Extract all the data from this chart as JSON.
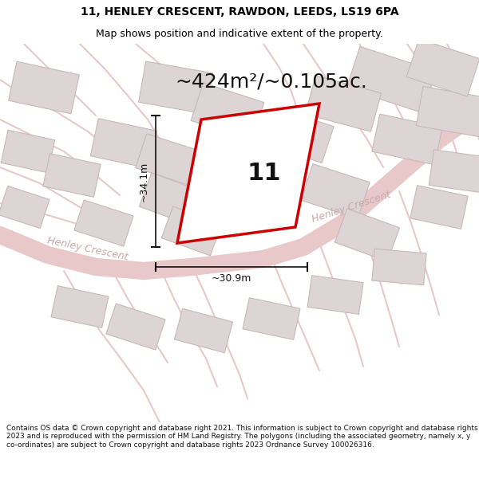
{
  "title": "11, HENLEY CRESCENT, RAWDON, LEEDS, LS19 6PA",
  "subtitle": "Map shows position and indicative extent of the property.",
  "area_text": "~424m²/~0.105ac.",
  "dim_vertical": "~34.1m",
  "dim_horizontal": "~30.9m",
  "property_number": "11",
  "footer": "Contains OS data © Crown copyright and database right 2021. This information is subject to Crown copyright and database rights 2023 and is reproduced with the permission of HM Land Registry. The polygons (including the associated geometry, namely x, y co-ordinates) are subject to Crown copyright and database rights 2023 Ordnance Survey 100026316.",
  "bg_color": "#ffffff",
  "map_bg": "#f7f0f0",
  "road_color": "#e8c8c8",
  "building_color": "#ddd5d5",
  "building_edge": "#c8b8b8",
  "property_fill": "#ffffff",
  "property_edge": "#cc0000",
  "dim_line_color": "#111111",
  "title_color": "#000000",
  "text_color": "#111111",
  "road_label_color": "#c8a8a8",
  "footer_color": "#111111",
  "figsize": [
    6.0,
    6.25
  ],
  "dpi": 100,
  "title_fontsize": 10,
  "subtitle_fontsize": 9,
  "area_fontsize": 18,
  "number_fontsize": 22,
  "dim_fontsize": 9,
  "road_label_fontsize": 9,
  "footer_fontsize": 6.5
}
